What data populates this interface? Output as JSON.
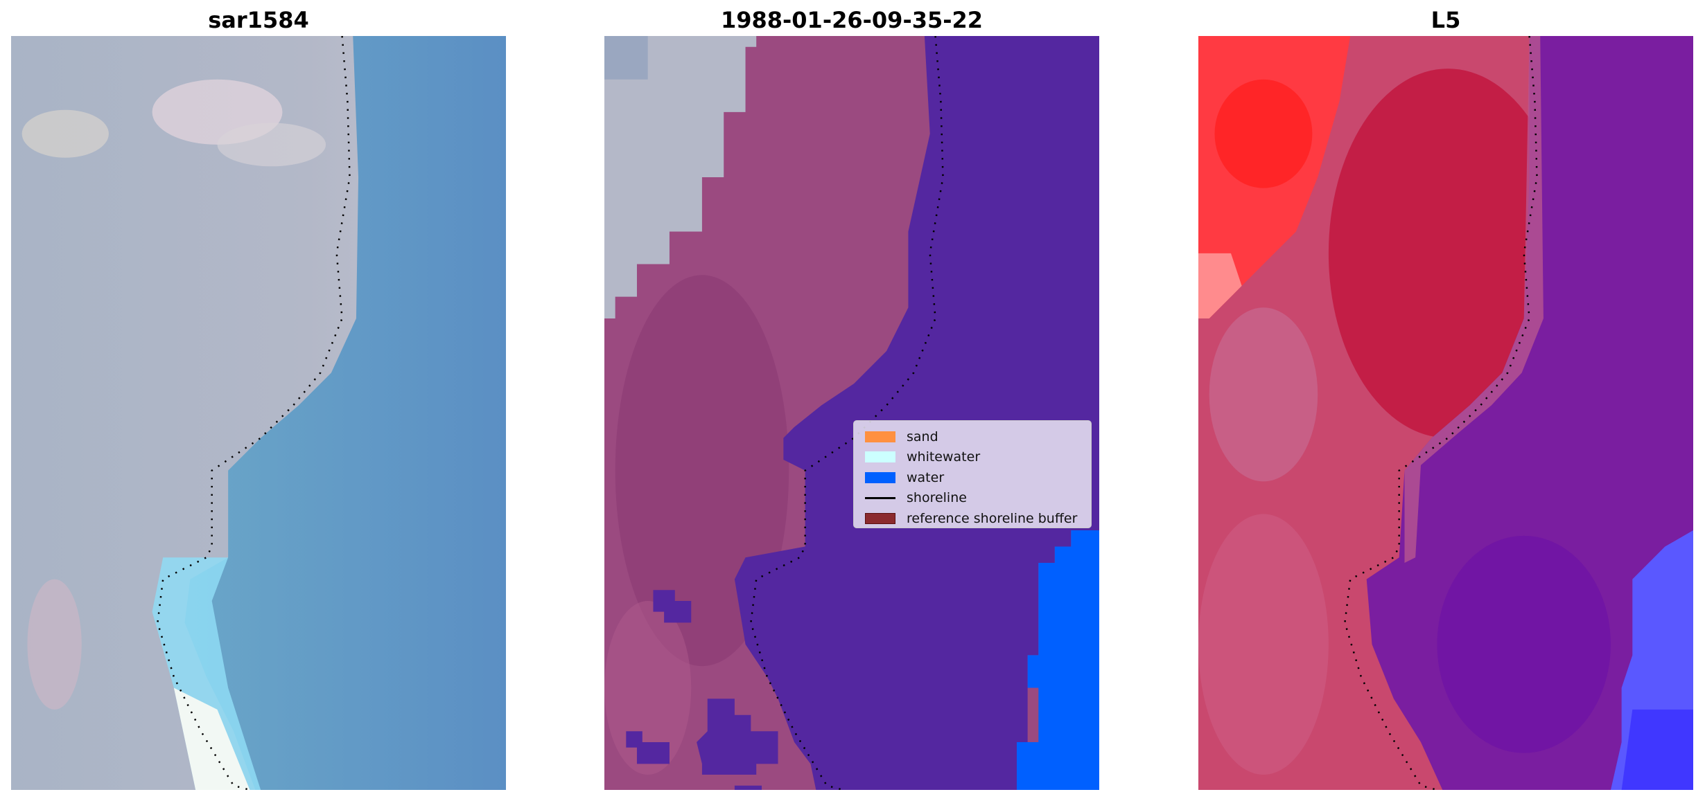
{
  "panels": [
    {
      "title": "sar1584"
    },
    {
      "title": "1988-01-26-09-35-22"
    },
    {
      "title": "L5"
    }
  ],
  "legend": {
    "items": [
      {
        "label": "sand",
        "type": "patch",
        "color": "#ff9040"
      },
      {
        "label": "whitewater",
        "type": "patch",
        "color": "#ccffff"
      },
      {
        "label": "water",
        "type": "patch",
        "color": "#0060ff"
      },
      {
        "label": "shoreline",
        "type": "line",
        "color": "#000000"
      },
      {
        "label": "reference shoreline buffer",
        "type": "patch",
        "color": "#8b2a2e"
      }
    ]
  },
  "colors": {
    "class_water": "#5427a0",
    "class_sand_overlay": "#9b4a80",
    "sea": "#0060ff"
  }
}
